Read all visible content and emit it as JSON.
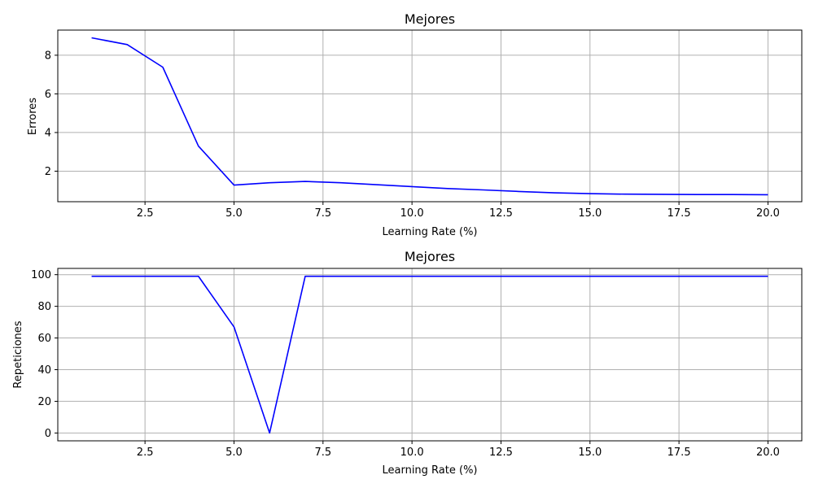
{
  "chart_data": [
    {
      "type": "line",
      "title": "Mejores",
      "xlabel": "Learning Rate (%)",
      "ylabel": "Errores",
      "xlim": [
        0.05,
        20.95
      ],
      "ylim": [
        0.42,
        9.3
      ],
      "xticks": [
        2.5,
        5.0,
        7.5,
        10.0,
        12.5,
        15.0,
        17.5,
        20.0
      ],
      "xtick_labels": [
        "2.5",
        "5.0",
        "7.5",
        "10.0",
        "12.5",
        "15.0",
        "17.5",
        "20.0"
      ],
      "yticks": [
        2,
        4,
        6,
        8
      ],
      "ytick_labels": [
        "2",
        "4",
        "6",
        "8"
      ],
      "grid": true,
      "color": "#0000ff",
      "x": [
        1,
        2,
        3,
        4,
        5,
        6,
        7,
        8,
        9,
        10,
        11,
        12,
        13,
        14,
        15,
        16,
        17,
        18,
        19,
        20
      ],
      "y": [
        8.9,
        8.55,
        7.38,
        3.3,
        1.28,
        1.4,
        1.47,
        1.4,
        1.3,
        1.2,
        1.1,
        1.03,
        0.95,
        0.88,
        0.84,
        0.81,
        0.8,
        0.79,
        0.79,
        0.78
      ]
    },
    {
      "type": "line",
      "title": "Mejores",
      "xlabel": "Learning Rate (%)",
      "ylabel": "Repeticiones",
      "xlim": [
        0.05,
        20.95
      ],
      "ylim": [
        -4.95,
        103.95
      ],
      "xticks": [
        2.5,
        5.0,
        7.5,
        10.0,
        12.5,
        15.0,
        17.5,
        20.0
      ],
      "xtick_labels": [
        "2.5",
        "5.0",
        "7.5",
        "10.0",
        "12.5",
        "15.0",
        "17.5",
        "20.0"
      ],
      "yticks": [
        0,
        20,
        40,
        60,
        80,
        100
      ],
      "ytick_labels": [
        "0",
        "20",
        "40",
        "60",
        "80",
        "100"
      ],
      "grid": true,
      "color": "#0000ff",
      "x": [
        1,
        2,
        3,
        4,
        5,
        6,
        7,
        8,
        9,
        10,
        11,
        12,
        13,
        14,
        15,
        16,
        17,
        18,
        19,
        20
      ],
      "y": [
        99,
        99,
        99,
        99,
        67,
        0,
        99,
        99,
        99,
        99,
        99,
        99,
        99,
        99,
        99,
        99,
        99,
        99,
        99,
        99
      ]
    }
  ]
}
